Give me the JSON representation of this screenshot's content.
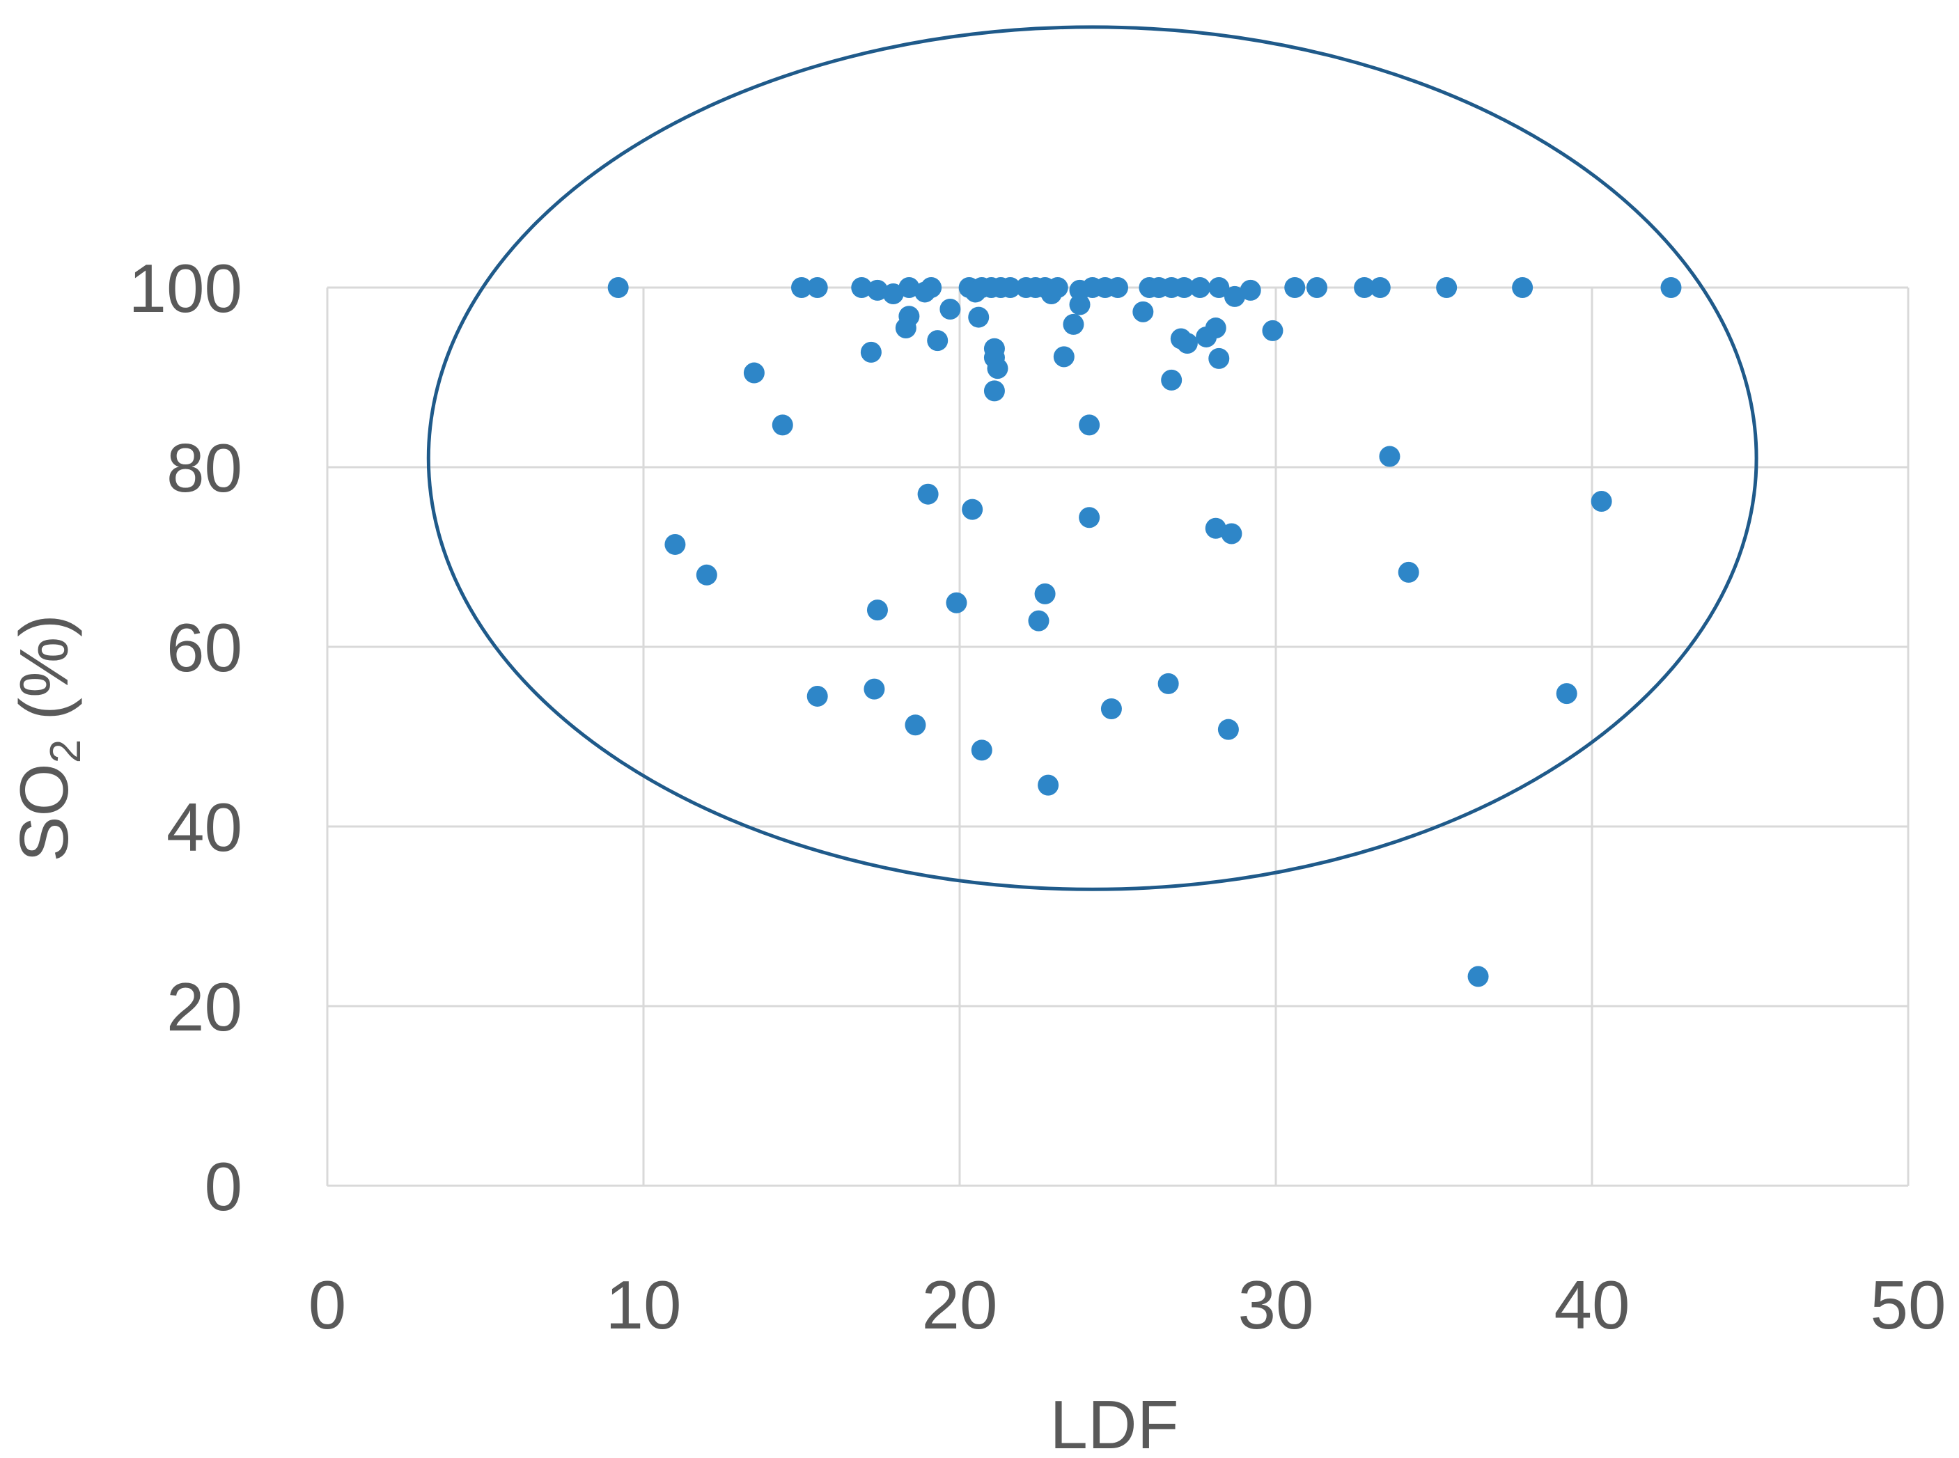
{
  "chart_data": {
    "type": "scatter",
    "title": "",
    "xlabel": "LDF",
    "ylabel": "SO",
    "ylabel_subscript": "2",
    "ylabel_suffix": " (%)",
    "xlim": [
      0,
      50
    ],
    "ylim": [
      0,
      100
    ],
    "x_ticks": [
      0,
      10,
      20,
      30,
      40,
      50
    ],
    "y_ticks": [
      0,
      20,
      40,
      60,
      80,
      100
    ],
    "x_tick_labels": [
      "0",
      "10",
      "20",
      "30",
      "40",
      "50"
    ],
    "y_tick_labels": [
      "0",
      "20",
      "40",
      "60",
      "80",
      "100"
    ],
    "grid": true,
    "legend": "none",
    "marker_color": "#2e86c8",
    "ellipse_color": "#1f5a8a",
    "ellipse": {
      "center_x": 24.2,
      "center_y": 81.0,
      "radius_x": 21.0,
      "radius_y": 48.0
    },
    "series": [
      {
        "points": [
          [
            9.2,
            100
          ],
          [
            15.0,
            100
          ],
          [
            15.5,
            100
          ],
          [
            16.9,
            100
          ],
          [
            17.4,
            99.7
          ],
          [
            17.9,
            99.3
          ],
          [
            18.4,
            100
          ],
          [
            18.9,
            99.5
          ],
          [
            19.1,
            100
          ],
          [
            20.3,
            100
          ],
          [
            20.5,
            99.5
          ],
          [
            20.7,
            100
          ],
          [
            21.0,
            100
          ],
          [
            21.3,
            100
          ],
          [
            21.6,
            100
          ],
          [
            22.1,
            100
          ],
          [
            22.4,
            100
          ],
          [
            22.7,
            100
          ],
          [
            22.9,
            99.3
          ],
          [
            23.1,
            100
          ],
          [
            23.8,
            99.7
          ],
          [
            24.2,
            100
          ],
          [
            24.6,
            100
          ],
          [
            25.0,
            100
          ],
          [
            26.0,
            100
          ],
          [
            26.3,
            100
          ],
          [
            26.7,
            100
          ],
          [
            27.1,
            100
          ],
          [
            27.6,
            100
          ],
          [
            28.2,
            100
          ],
          [
            28.7,
            99.0
          ],
          [
            29.2,
            99.7
          ],
          [
            30.6,
            100
          ],
          [
            31.3,
            100
          ],
          [
            32.8,
            100
          ],
          [
            33.3,
            100
          ],
          [
            35.4,
            100
          ],
          [
            37.8,
            100
          ],
          [
            42.5,
            100
          ],
          [
            19.7,
            97.6
          ],
          [
            20.6,
            96.7
          ],
          [
            18.4,
            96.8
          ],
          [
            18.3,
            95.5
          ],
          [
            19.3,
            94.1
          ],
          [
            23.8,
            98.1
          ],
          [
            23.6,
            95.9
          ],
          [
            25.8,
            97.3
          ],
          [
            27.0,
            94.3
          ],
          [
            27.2,
            93.8
          ],
          [
            27.8,
            94.5
          ],
          [
            28.1,
            95.5
          ],
          [
            29.9,
            95.2
          ],
          [
            17.2,
            92.8
          ],
          [
            21.1,
            93.2
          ],
          [
            21.1,
            92.2
          ],
          [
            21.2,
            91.0
          ],
          [
            21.1,
            88.5
          ],
          [
            23.3,
            92.3
          ],
          [
            28.2,
            92.1
          ],
          [
            26.7,
            89.7
          ],
          [
            13.5,
            90.5
          ],
          [
            14.4,
            84.7
          ],
          [
            24.1,
            84.7
          ],
          [
            33.6,
            81.2
          ],
          [
            19.0,
            77.0
          ],
          [
            20.4,
            75.3
          ],
          [
            24.1,
            74.4
          ],
          [
            28.1,
            73.2
          ],
          [
            28.6,
            72.6
          ],
          [
            40.3,
            76.2
          ],
          [
            11.0,
            71.4
          ],
          [
            12.0,
            68.0
          ],
          [
            34.2,
            68.3
          ],
          [
            22.7,
            65.9
          ],
          [
            19.9,
            64.9
          ],
          [
            17.4,
            64.1
          ],
          [
            22.5,
            62.9
          ],
          [
            26.6,
            55.9
          ],
          [
            15.5,
            54.5
          ],
          [
            17.3,
            55.3
          ],
          [
            24.8,
            53.1
          ],
          [
            18.6,
            51.3
          ],
          [
            28.5,
            50.8
          ],
          [
            39.2,
            54.8
          ],
          [
            20.7,
            48.5
          ],
          [
            22.8,
            44.6
          ],
          [
            36.4,
            23.3
          ]
        ]
      }
    ]
  }
}
